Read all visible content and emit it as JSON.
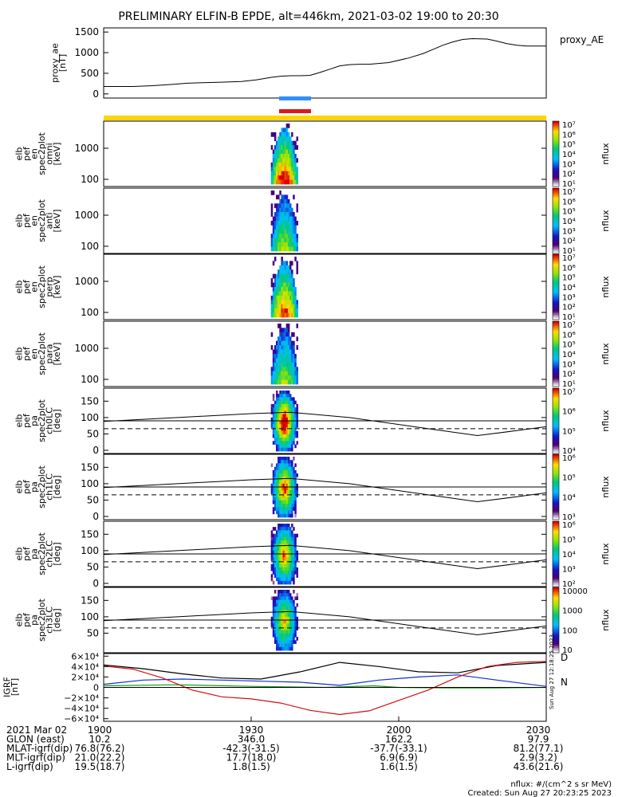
{
  "title": "PRELIMINARY ELFIN-B EPDE, alt=446km, 2021-03-02 19:00 to 20:30",
  "colors": {
    "bar_yellow": "#ffd400",
    "bar_blue": "#2f8fff",
    "bar_red": "#e01818",
    "bx": "#000000",
    "by": "#1030d0",
    "bz": "#10a010",
    "bmag": "#d01010"
  },
  "chart_data": [
    {
      "type": "line",
      "panel": "proxy_ae",
      "ylabel_lines": [
        "proxy_ae",
        "[nT]"
      ],
      "legend": "proxy_AE",
      "yticks": [
        "1500",
        "1000",
        "500",
        "0"
      ],
      "ylim": [
        -100,
        1600
      ],
      "x": [
        0,
        3,
        6,
        10,
        14,
        17,
        20,
        24,
        28,
        31,
        34,
        36,
        38,
        40,
        42,
        44,
        46,
        48,
        50,
        52,
        54,
        58,
        62,
        65,
        67,
        69,
        71,
        73,
        75,
        78,
        80,
        82,
        84,
        86,
        88,
        90
      ],
      "values": [
        180,
        180,
        180,
        200,
        230,
        260,
        270,
        285,
        300,
        340,
        400,
        430,
        440,
        440,
        450,
        520,
        600,
        680,
        710,
        720,
        720,
        760,
        870,
        980,
        1080,
        1180,
        1260,
        1320,
        1340,
        1330,
        1280,
        1220,
        1180,
        1160,
        1160,
        1160
      ]
    },
    {
      "type": "heatmap",
      "panel": "spectrograms",
      "series": [
        {
          "name": "omni",
          "ylabel_lines": [
            "elb",
            "pef",
            "en",
            "spec2plot",
            "omni",
            "[keV]"
          ],
          "yticks": [
            "1000",
            "100"
          ]
        },
        {
          "name": "anti",
          "ylabel_lines": [
            "elb",
            "pef",
            "en",
            "spec2plot",
            "anti",
            "[keV]"
          ],
          "yticks": [
            "1000",
            "100"
          ]
        },
        {
          "name": "perp",
          "ylabel_lines": [
            "elb",
            "pef",
            "en",
            "spec2plot",
            "perp",
            "[keV]"
          ],
          "yticks": [
            "1000",
            "100"
          ]
        },
        {
          "name": "para",
          "ylabel_lines": [
            "elb",
            "pef",
            "en",
            "spec2plot",
            "para",
            "[keV]"
          ],
          "yticks": [
            "1000",
            "100"
          ]
        },
        {
          "name": "ch0LC",
          "ylabel_lines": [
            "elb",
            "pef",
            "pa",
            "spec2plot",
            "ch0LC",
            "[deg]"
          ],
          "yticks": [
            "150",
            "100",
            "50",
            "0"
          ]
        },
        {
          "name": "ch1LC",
          "ylabel_lines": [
            "elb",
            "pef",
            "pa",
            "spec2plot",
            "ch1LC",
            "[deg]"
          ],
          "yticks": [
            "150",
            "100",
            "50",
            "0"
          ]
        },
        {
          "name": "ch2LC",
          "ylabel_lines": [
            "elb",
            "pef",
            "pa",
            "spec2plot",
            "ch2LC",
            "[deg]"
          ],
          "yticks": [
            "150",
            "100",
            "50",
            "0"
          ]
        },
        {
          "name": "ch3LC",
          "ylabel_lines": [
            "elb",
            "pef",
            "pa",
            "spec2plot",
            "ch3LC",
            "[deg]"
          ],
          "yticks": [
            "150",
            "100",
            "50"
          ]
        }
      ],
      "colorbar_label": "nflux",
      "colorbar_ticks": [
        [
          "10⁷",
          "10⁶",
          "10⁵",
          "10⁴",
          "10³",
          "10²",
          "10¹"
        ],
        [
          "10⁷",
          "10⁶",
          "10⁵",
          "10⁴",
          "10³",
          "10²",
          "10¹"
        ],
        [
          "10⁷",
          "10⁶",
          "10⁵",
          "10⁴",
          "10³",
          "10²",
          "10¹"
        ],
        [
          "10⁷",
          "10⁶",
          "10⁵",
          "10⁴",
          "10³",
          "10²",
          "10¹"
        ],
        [
          "10⁷",
          "10⁶",
          "10⁵",
          "10⁴"
        ],
        [
          "10⁶",
          "10⁵",
          "10⁴",
          "10³"
        ],
        [
          "10⁶",
          "10⁵",
          "10⁴",
          "10³",
          "10²"
        ],
        [
          "10000",
          "1000",
          "100",
          "10"
        ]
      ],
      "lc_solid_deg": [
        88,
        100,
        112,
        116,
        100,
        68,
        45,
        60,
        72
      ],
      "lc_dashed_deg": 66
    },
    {
      "type": "line",
      "panel": "igrf",
      "ylabel_lines": [
        "IGRF",
        "[nT]"
      ],
      "yticks": [
        "6×10⁴",
        "4×10⁴",
        "2×10⁴",
        "0",
        "−2×10⁴",
        "−4×10⁴",
        "−6×10⁴"
      ],
      "ylim": [
        -65000,
        65000
      ],
      "legend": [
        "D",
        "N"
      ],
      "series": [
        {
          "name": "",
          "color": "black",
          "x": [
            0,
            8,
            16,
            24,
            32,
            40,
            48,
            56,
            64,
            72,
            80,
            90
          ],
          "values": [
            43000,
            36000,
            26000,
            18000,
            16000,
            30000,
            48000,
            40000,
            30000,
            28000,
            42000,
            48000
          ]
        },
        {
          "name": "",
          "color": "blue",
          "x": [
            0,
            8,
            16,
            24,
            32,
            40,
            48,
            56,
            64,
            72,
            80,
            90
          ],
          "values": [
            6000,
            14000,
            16000,
            14000,
            12000,
            10000,
            4000,
            14000,
            20000,
            24000,
            14000,
            2000
          ]
        },
        {
          "name": "",
          "color": "green",
          "x": [
            0,
            15,
            30,
            45,
            55,
            60,
            70,
            80,
            90
          ],
          "values": [
            3000,
            5000,
            2000,
            0,
            3000,
            0,
            -1000,
            -1000,
            0
          ]
        },
        {
          "name": "",
          "color": "red",
          "x": [
            0,
            6,
            12,
            18,
            24,
            30,
            36,
            42,
            48,
            54,
            60,
            66,
            72,
            78,
            84,
            90
          ],
          "values": [
            41000,
            35000,
            18000,
            -5000,
            -18000,
            -22000,
            -30000,
            -44000,
            -52000,
            -45000,
            -25000,
            -5000,
            20000,
            40000,
            48000,
            50000
          ]
        }
      ]
    }
  ],
  "time_labels": [
    "1900",
    "1930",
    "2000",
    "2030"
  ],
  "side_stamp": "Sun Aug 27 12:18:25 2023",
  "ephemeris": {
    "rows": [
      {
        "label": "2021 Mar 02",
        "v": [
          "1900",
          "1930",
          "2000",
          "2030"
        ]
      },
      {
        "label": "GLON (east)",
        "v": [
          "10.2",
          "346.0",
          "162.2",
          "97.9"
        ]
      },
      {
        "label": "MLAT-igrf(dip)",
        "v": [
          "76.8(76.2)",
          "-42.3(-31.5)",
          "-37.7(-33.1)",
          "81.2(77.1)"
        ]
      },
      {
        "label": "MLT-igrf(dip)",
        "v": [
          "21.0(22.2)",
          "17.7(18.0)",
          "6.9(6.9)",
          "2.9(3.2)"
        ]
      },
      {
        "label": "L-igrf(dip)",
        "v": [
          "19.5(18.7)",
          "1.8(1.5)",
          "1.6(1.5)",
          "43.6(21.6)"
        ]
      }
    ]
  },
  "footer": {
    "units": "nflux: #/(cm^2 s sr MeV)",
    "created": "Created: Sun Aug 27 20:23:25 2023"
  }
}
